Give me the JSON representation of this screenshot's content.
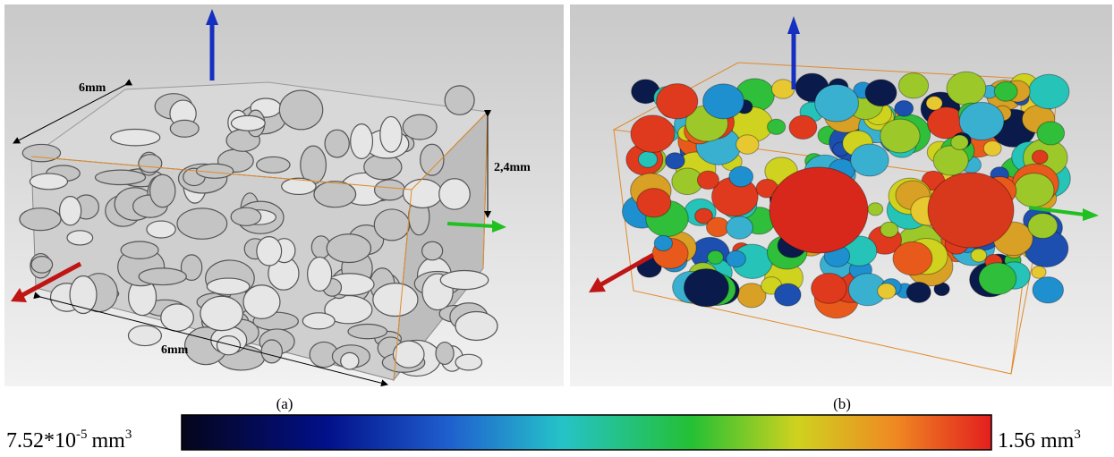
{
  "panels": [
    {
      "label": "(a)",
      "dimensions": {
        "top": "6mm",
        "bottom": "6mm",
        "height": "2,4mm"
      }
    },
    {
      "label": "(b)"
    }
  ],
  "colorbar": {
    "min": {
      "mantissa": "7.52*10",
      "exponent": "-5",
      "unit": "mm",
      "unit_exponent": "3"
    },
    "max": {
      "value": "1.56",
      "unit": "mm",
      "unit_exponent": "3"
    }
  }
}
